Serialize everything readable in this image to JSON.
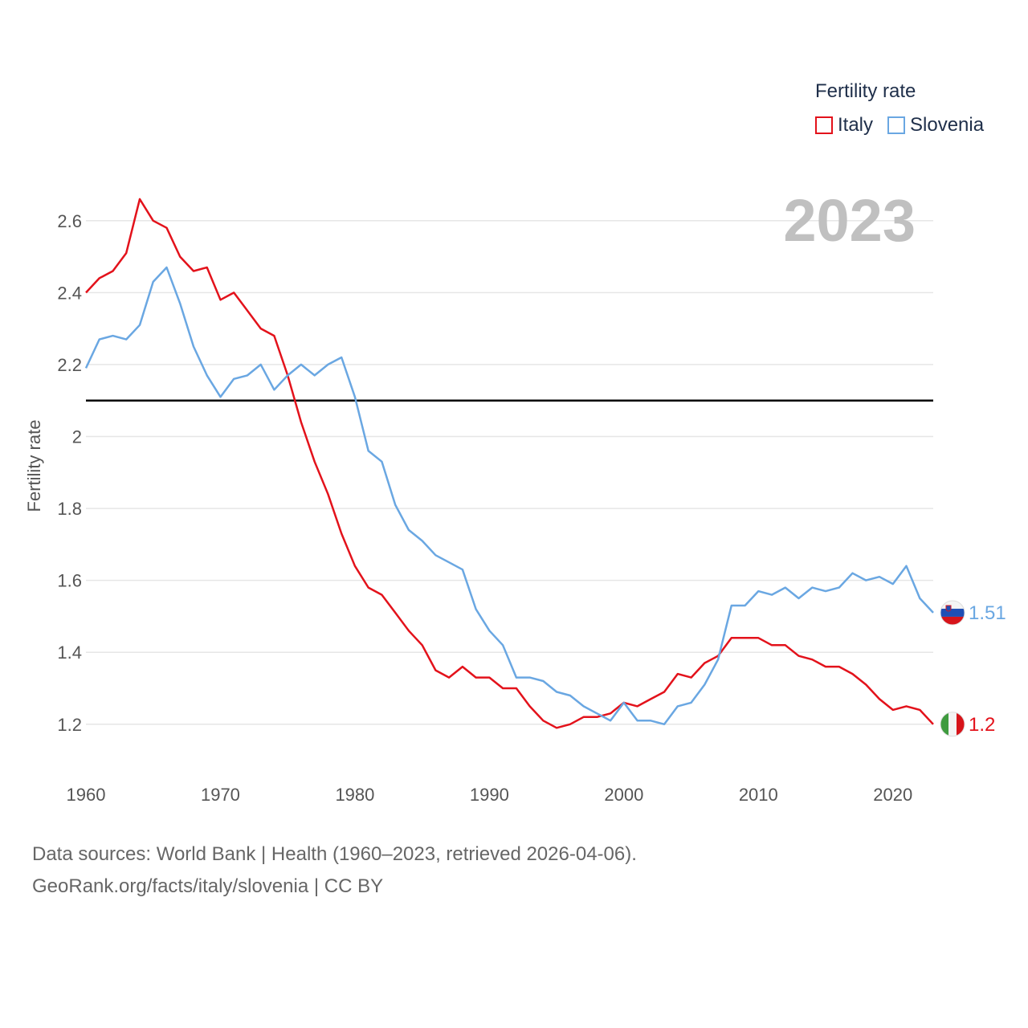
{
  "chart_data": {
    "type": "line",
    "title": "Fertility rate",
    "ylabel": "Fertility rate",
    "xlabel": "",
    "year_label": "2023",
    "xlim": [
      1960,
      2023
    ],
    "ylim": [
      1.07,
      2.7
    ],
    "x_ticks": [
      1960,
      1970,
      1980,
      1990,
      2000,
      2010,
      2020
    ],
    "y_ticks": [
      1.2,
      1.4,
      1.6,
      1.8,
      2,
      2.2,
      2.4,
      2.6
    ],
    "reference_line": 2.1,
    "x": [
      1960,
      1961,
      1962,
      1963,
      1964,
      1965,
      1966,
      1967,
      1968,
      1969,
      1970,
      1971,
      1972,
      1973,
      1974,
      1975,
      1976,
      1977,
      1978,
      1979,
      1980,
      1981,
      1982,
      1983,
      1984,
      1985,
      1986,
      1987,
      1988,
      1989,
      1990,
      1991,
      1992,
      1993,
      1994,
      1995,
      1996,
      1997,
      1998,
      1999,
      2000,
      2001,
      2002,
      2003,
      2004,
      2005,
      2006,
      2007,
      2008,
      2009,
      2010,
      2011,
      2012,
      2013,
      2014,
      2015,
      2016,
      2017,
      2018,
      2019,
      2020,
      2021,
      2022,
      2023
    ],
    "series": [
      {
        "name": "Italy",
        "color": "#e3121b",
        "end_label": "1.2",
        "values": [
          2.4,
          2.44,
          2.46,
          2.51,
          2.66,
          2.6,
          2.58,
          2.5,
          2.46,
          2.47,
          2.38,
          2.4,
          2.35,
          2.3,
          2.28,
          2.17,
          2.04,
          1.93,
          1.84,
          1.73,
          1.64,
          1.58,
          1.56,
          1.51,
          1.46,
          1.42,
          1.35,
          1.33,
          1.36,
          1.33,
          1.33,
          1.3,
          1.3,
          1.25,
          1.21,
          1.19,
          1.2,
          1.22,
          1.22,
          1.23,
          1.26,
          1.25,
          1.27,
          1.29,
          1.34,
          1.33,
          1.37,
          1.39,
          1.44,
          1.44,
          1.44,
          1.42,
          1.42,
          1.39,
          1.38,
          1.36,
          1.36,
          1.34,
          1.31,
          1.27,
          1.24,
          1.25,
          1.24,
          1.2
        ]
      },
      {
        "name": "Slovenia",
        "color": "#6aa7e2",
        "end_label": "1.51",
        "values": [
          2.19,
          2.27,
          2.28,
          2.27,
          2.31,
          2.43,
          2.47,
          2.37,
          2.25,
          2.17,
          2.11,
          2.16,
          2.17,
          2.2,
          2.13,
          2.17,
          2.2,
          2.17,
          2.2,
          2.22,
          2.11,
          1.96,
          1.93,
          1.81,
          1.74,
          1.71,
          1.67,
          1.65,
          1.63,
          1.52,
          1.46,
          1.42,
          1.33,
          1.33,
          1.32,
          1.29,
          1.28,
          1.25,
          1.23,
          1.21,
          1.26,
          1.21,
          1.21,
          1.2,
          1.25,
          1.26,
          1.31,
          1.38,
          1.53,
          1.53,
          1.57,
          1.56,
          1.58,
          1.55,
          1.58,
          1.57,
          1.58,
          1.62,
          1.6,
          1.61,
          1.59,
          1.64,
          1.55,
          1.51
        ]
      }
    ]
  },
  "legend": {
    "title": "Fertility rate",
    "items": [
      {
        "label": "Italy",
        "color": "#e3121b"
      },
      {
        "label": "Slovenia",
        "color": "#6aa7e2"
      }
    ]
  },
  "footer": {
    "line1": "Data sources: World Bank | Health (1960–2023, retrieved 2026-04-06).",
    "line2": "GeoRank.org/facts/italy/slovenia | CC BY"
  }
}
